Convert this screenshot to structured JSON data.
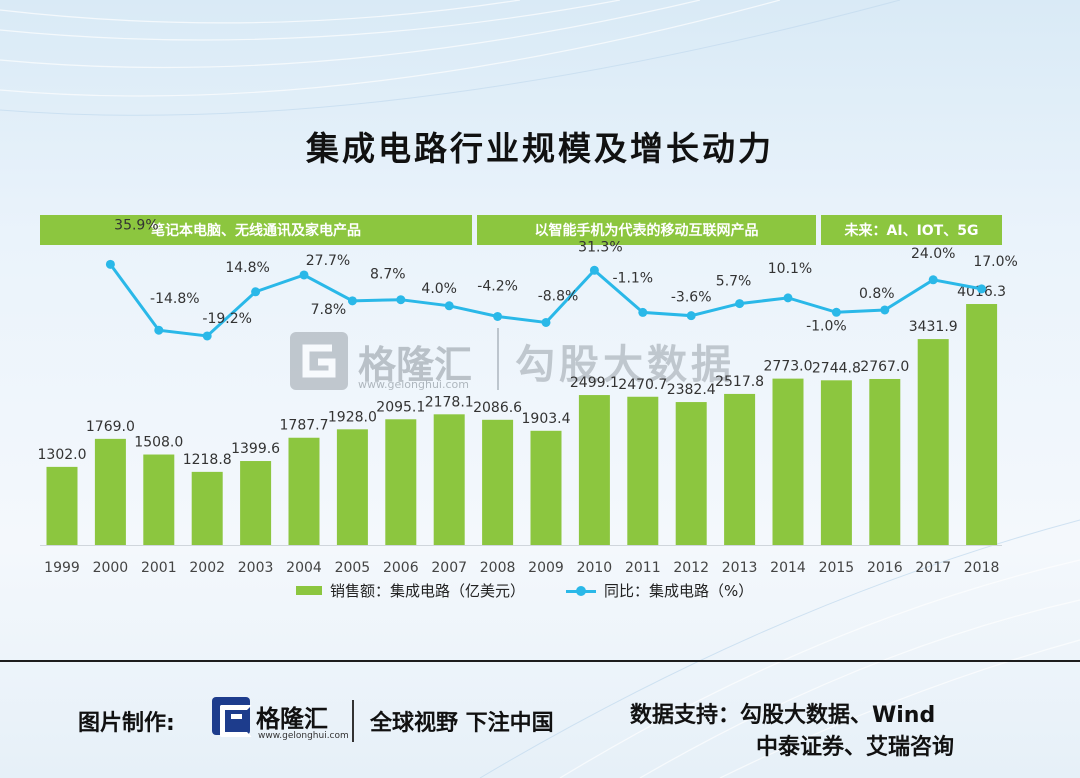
{
  "title": "集成电路行业规模及增长动力",
  "eras": [
    "笔记本电脑、无线通讯及家电产品",
    "以智能手机为代表的移动互联网产品",
    "未来：AI、IOT、5G"
  ],
  "watermarks": {
    "brand": "格隆汇",
    "brand_url": "www.gelonghui.com",
    "data_brand": "勾股大数据"
  },
  "colors": {
    "bar": "#8cc63f",
    "line": "#2ab8e8",
    "era_bar": "#8cc63f"
  },
  "chart_data": {
    "type": "bar",
    "categories": [
      "1999",
      "2000",
      "2001",
      "2002",
      "2003",
      "2004",
      "2005",
      "2006",
      "2007",
      "2008",
      "2009",
      "2010",
      "2011",
      "2012",
      "2013",
      "2014",
      "2015",
      "2016",
      "2017",
      "2018"
    ],
    "series": [
      {
        "name": "销售额：集成电路（亿美元）",
        "type": "bar",
        "values": [
          1302.0,
          1769.0,
          1508.0,
          1218.8,
          1399.6,
          1787.7,
          1928.0,
          2095.1,
          2178.1,
          2086.6,
          1903.4,
          2499.1,
          2470.7,
          2382.4,
          2517.8,
          2773.0,
          2744.8,
          2767.0,
          3431.9,
          4016.3
        ],
        "labels": [
          "1302.0",
          "1769.0",
          "1508.0",
          "1218.8",
          "1399.6",
          "1787.7",
          "1928.0",
          "2095.1",
          "2178.1",
          "2086.6",
          "1903.4",
          "2499.1",
          "2470.7",
          "2382.4",
          "2517.8",
          "2773.0",
          "2744.8",
          "2767.0",
          "3431.9",
          "4016.3"
        ]
      },
      {
        "name": "同比：集成电路（%）",
        "type": "line",
        "values": [
          null,
          35.9,
          -14.8,
          -19.2,
          14.8,
          27.7,
          7.8,
          8.7,
          4.0,
          -4.2,
          -8.8,
          31.3,
          -1.1,
          -3.6,
          5.7,
          10.1,
          -1.0,
          0.8,
          24.0,
          17.0
        ],
        "labels": [
          "",
          "35.9%",
          "-14.8%",
          "-19.2%",
          "14.8%",
          "27.7%",
          "7.8%",
          "8.7%",
          "4.0%",
          "-4.2%",
          "-8.8%",
          "31.3%",
          "-1.1%",
          "-3.6%",
          "5.7%",
          "10.1%",
          "-1.0%",
          "0.8%",
          "24.0%",
          "17.0%"
        ]
      }
    ],
    "legend": [
      "销售额：集成电路（亿美元）",
      "同比：集成电路（%）"
    ],
    "legend_position": "bottom",
    "grid": false
  },
  "footer": {
    "made_by_label": "图片制作:",
    "logo_name": "格隆汇",
    "logo_url": "www.gelonghui.com",
    "slogan": "全球视野 下注中国",
    "source_line1": "数据支持：勾股大数据、Wind",
    "source_line2": "中泰证券、艾瑞咨询"
  }
}
